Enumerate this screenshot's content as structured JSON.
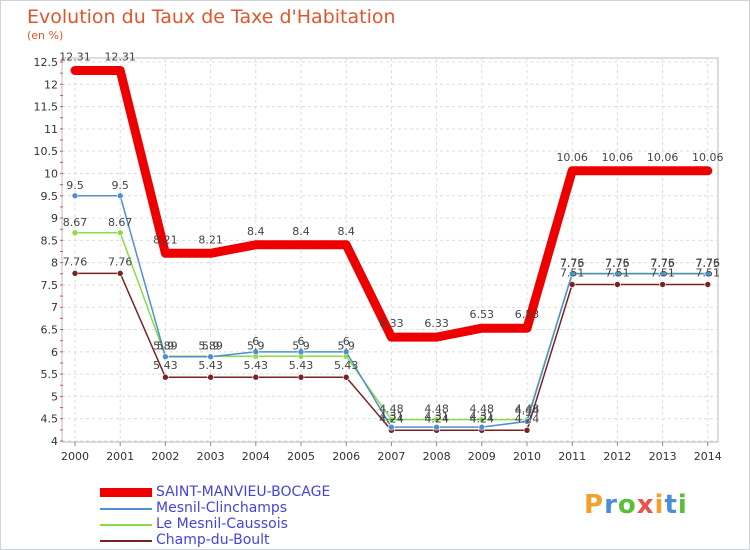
{
  "title": "Evolution du Taux de Taxe d'Habitation",
  "unit_label": "(en %)",
  "logo_text": "Proxiti",
  "colors": {
    "title": "#e0562c",
    "grid": "#d0d0d0",
    "axis": "#888888",
    "legend_text": "#4444dd"
  },
  "chart_data": {
    "type": "line",
    "title": "Evolution du Taux de Taxe d'Habitation",
    "ylabel": "(en %)",
    "xlabel": "",
    "x": [
      "2000",
      "2001",
      "2002",
      "2003",
      "2004",
      "2005",
      "2006",
      "2007",
      "2008",
      "2009",
      "2010",
      "2011",
      "2012",
      "2013",
      "2014"
    ],
    "ylim": [
      4,
      12.5
    ],
    "yticks": [
      "4",
      "4.5",
      "5",
      "5.5",
      "6",
      "6.5",
      "7",
      "7.5",
      "8",
      "8.5",
      "9",
      "9.5",
      "10",
      "10.5",
      "11",
      "11.5",
      "12",
      "12.5"
    ],
    "grid": true,
    "legend_position": "bottom-left",
    "series": [
      {
        "name": "SAINT-MANVIEU-BOCAGE",
        "color": "#ee0000",
        "values": [
          12.31,
          12.31,
          8.21,
          8.21,
          8.4,
          8.4,
          8.4,
          6.33,
          6.33,
          6.53,
          6.53,
          10.06,
          10.06,
          10.06,
          10.06
        ],
        "labels": [
          "12.31",
          "12.31",
          "8.21",
          "8.21",
          "8.4",
          "8.4",
          "8.4",
          "6.33",
          "6.33",
          "6.53",
          "6.53",
          "10.06",
          "10.06",
          "10.06",
          "10.06"
        ]
      },
      {
        "name": "Mesnil-Clinchamps",
        "color": "#4f8fd0",
        "values": [
          9.5,
          9.5,
          5.89,
          5.89,
          6,
          6,
          6,
          4.31,
          4.31,
          4.31,
          4.44,
          7.75,
          7.75,
          7.75,
          7.75
        ],
        "labels": [
          "9.5",
          "9.5",
          "5.89",
          "5.89",
          "6",
          "6",
          "6",
          "4.31",
          "4.31",
          "4.31",
          "4.44",
          "7.75",
          "7.75",
          "7.75",
          "7.75"
        ]
      },
      {
        "name": "Le Mesnil-Caussois",
        "color": "#88dd44",
        "values": [
          8.67,
          8.67,
          5.9,
          5.9,
          5.9,
          5.9,
          5.9,
          4.48,
          4.48,
          4.48,
          4.48,
          7.76,
          7.76,
          7.76,
          7.76
        ],
        "labels": [
          "8.67",
          "8.67",
          "5.9",
          "5.9",
          "5.9",
          "5.9",
          "5.9",
          "4.48",
          "4.48",
          "4.48",
          "4.48",
          "7.76",
          "7.76",
          "7.76",
          "7.76"
        ]
      },
      {
        "name": "Champ-du-Boult",
        "color": "#7a2222",
        "values": [
          7.76,
          7.76,
          5.43,
          5.43,
          5.43,
          5.43,
          5.43,
          4.24,
          4.24,
          4.24,
          4.24,
          7.51,
          7.51,
          7.51,
          7.51
        ],
        "labels": [
          "7.76",
          "7.76",
          "5.43",
          "5.43",
          "5.43",
          "5.43",
          "5.43",
          "4.24",
          "4.24",
          "4.24",
          "4.24",
          "7.51",
          "7.51",
          "7.51",
          "7.51"
        ]
      }
    ]
  }
}
